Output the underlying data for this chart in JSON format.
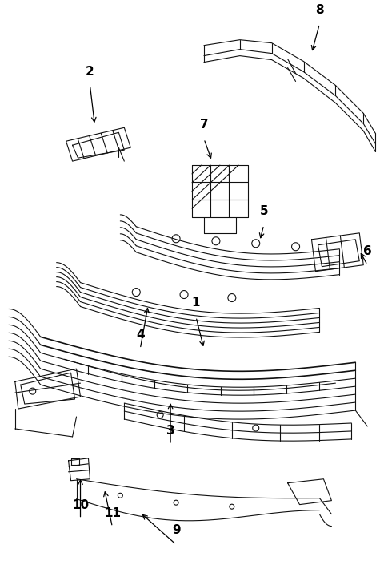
{
  "background_color": "#ffffff",
  "line_color": "#111111",
  "label_color": "#000000",
  "fig_width": 4.9,
  "fig_height": 7.2,
  "dpi": 100
}
